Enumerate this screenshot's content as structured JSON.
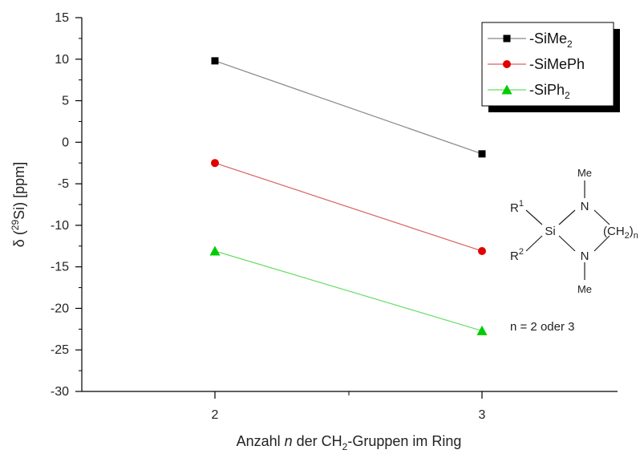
{
  "chart_data": {
    "type": "line",
    "categories": [
      2,
      3
    ],
    "x": [
      2,
      3
    ],
    "xlabel_prefix": "Anzahl ",
    "xlabel_italic": "n",
    "xlabel_mid": " der CH",
    "xlabel_sub": "2",
    "xlabel_suffix": "-Gruppen im Ring",
    "ylabel_prefix": "δ (",
    "ylabel_sup": "29",
    "ylabel_suffix": "Si) [ppm]",
    "ylim": [
      -30,
      15
    ],
    "yticks": [
      15,
      10,
      5,
      0,
      -5,
      -10,
      -15,
      -20,
      -25,
      -30
    ],
    "xticks": [
      2,
      3
    ],
    "legend_position": "top-right",
    "series": [
      {
        "name": "-SiMe",
        "name_sub": "2",
        "values": [
          9.8,
          -1.4
        ],
        "color": "#000000",
        "line_color": "#888888",
        "marker": "square"
      },
      {
        "name": "-SiMePh",
        "name_sub": "",
        "values": [
          -2.5,
          -13.1
        ],
        "color": "#e00000",
        "line_color": "#d96060",
        "marker": "circle"
      },
      {
        "name": "-SiPh",
        "name_sub": "2",
        "values": [
          -13.1,
          -22.7
        ],
        "color": "#00cc00",
        "line_color": "#66dd66",
        "marker": "triangle"
      }
    ]
  },
  "structure": {
    "me_top": "Me",
    "me_bottom": "Me",
    "r1": "R",
    "r1_sup": "1",
    "r2": "R",
    "r2_sup": "2",
    "si": "Si",
    "n_top": "N",
    "n_bottom": "N",
    "ch2": "(CH",
    "ch2_sub": "2",
    "ch2_close": ")",
    "ch2_n": "n",
    "note": "n = 2 oder 3"
  }
}
